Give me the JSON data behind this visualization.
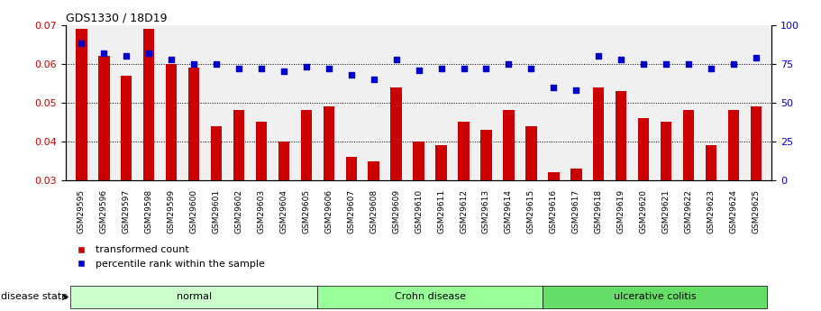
{
  "title": "GDS1330 / 18D19",
  "samples": [
    "GSM29595",
    "GSM29596",
    "GSM29597",
    "GSM29598",
    "GSM29599",
    "GSM29600",
    "GSM29601",
    "GSM29602",
    "GSM29603",
    "GSM29604",
    "GSM29605",
    "GSM29606",
    "GSM29607",
    "GSM29608",
    "GSM29609",
    "GSM29610",
    "GSM29611",
    "GSM29612",
    "GSM29613",
    "GSM29614",
    "GSM29615",
    "GSM29616",
    "GSM29617",
    "GSM29618",
    "GSM29619",
    "GSM29620",
    "GSM29621",
    "GSM29622",
    "GSM29623",
    "GSM29624",
    "GSM29625"
  ],
  "bar_values": [
    0.069,
    0.062,
    0.057,
    0.069,
    0.06,
    0.059,
    0.044,
    0.048,
    0.045,
    0.04,
    0.048,
    0.049,
    0.036,
    0.035,
    0.054,
    0.04,
    0.039,
    0.045,
    0.043,
    0.048,
    0.044,
    0.032,
    0.033,
    0.054,
    0.053,
    0.046,
    0.045,
    0.048,
    0.039,
    0.048,
    0.049
  ],
  "percentile_values": [
    88,
    82,
    80,
    82,
    78,
    75,
    75,
    72,
    72,
    70,
    73,
    72,
    68,
    65,
    78,
    71,
    72,
    72,
    72,
    75,
    72,
    60,
    58,
    80,
    78,
    75,
    75,
    75,
    72,
    75,
    79
  ],
  "groups": [
    {
      "label": "normal",
      "start": 0,
      "end": 11,
      "color": "#ccffcc"
    },
    {
      "label": "Crohn disease",
      "start": 11,
      "end": 21,
      "color": "#99ff99"
    },
    {
      "label": "ulcerative colitis",
      "start": 21,
      "end": 31,
      "color": "#66dd66"
    }
  ],
  "bar_color": "#cc0000",
  "dot_color": "#0000cc",
  "ylim_left": [
    0.03,
    0.07
  ],
  "ylim_right": [
    0,
    100
  ],
  "yticks_left": [
    0.03,
    0.04,
    0.05,
    0.06,
    0.07
  ],
  "yticks_right": [
    0,
    25,
    50,
    75,
    100
  ],
  "grid_values": [
    0.04,
    0.05,
    0.06
  ],
  "legend_bar_label": "transformed count",
  "legend_dot_label": "percentile rank within the sample",
  "disease_state_label": "disease state",
  "background_color": "#f0f0f0"
}
